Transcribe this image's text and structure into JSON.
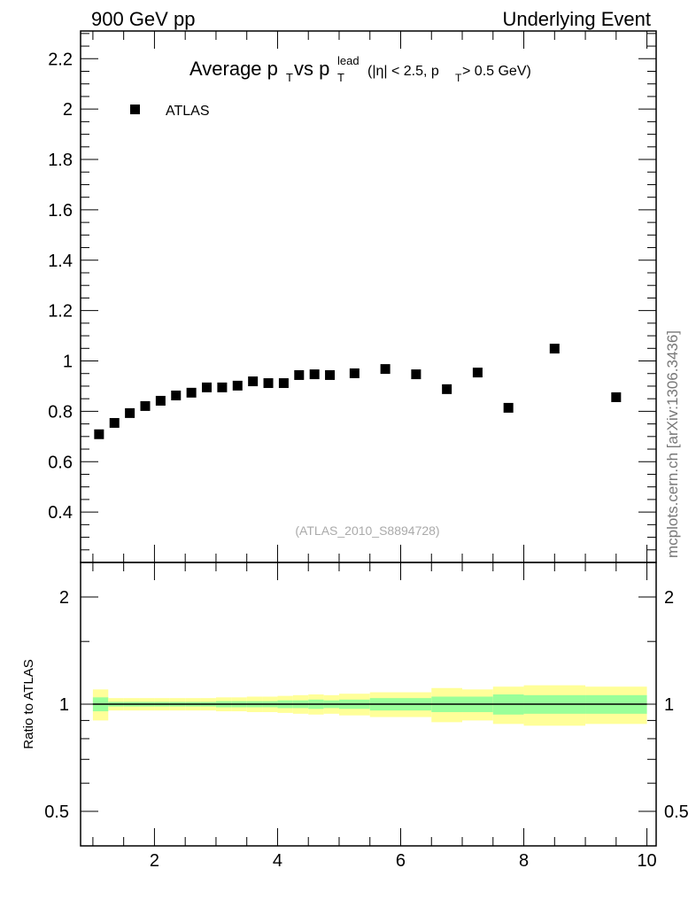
{
  "header": {
    "left": "900 GeV pp",
    "right": "Underlying Event"
  },
  "side_label": "mcplots.cern.ch [arXiv:1306.3436]",
  "analysis_label": "(ATLAS_2010_S8894728)",
  "chart_data": [
    {
      "type": "scatter",
      "title_main": "Average p",
      "title_sub_T": "T",
      "title_vs": " vs p",
      "title_lead": "lead",
      "title_cut": "(|η| < 2.5, p",
      "title_cut2": " > 0.5 GeV)",
      "xlim": [
        0.8,
        10.15
      ],
      "ylim": [
        0.2,
        2.31
      ],
      "yticks": [
        "0.4",
        "0.6",
        "0.8",
        "1",
        "1.2",
        "1.4",
        "1.6",
        "1.8",
        "2",
        "2.2"
      ],
      "legend": [
        {
          "name": "ATLAS",
          "marker": "square",
          "color": "#000000"
        }
      ],
      "legend_position": "top-left",
      "series": [
        {
          "name": "ATLAS",
          "x": [
            1.1,
            1.35,
            1.6,
            1.85,
            2.1,
            2.35,
            2.6,
            2.85,
            3.1,
            3.35,
            3.6,
            3.85,
            4.1,
            4.35,
            4.6,
            4.85,
            5.25,
            5.75,
            6.25,
            6.75,
            7.25,
            7.75,
            8.5,
            9.5
          ],
          "y": [
            0.709,
            0.754,
            0.793,
            0.821,
            0.842,
            0.863,
            0.874,
            0.895,
            0.895,
            0.902,
            0.919,
            0.912,
            0.912,
            0.944,
            0.947,
            0.944,
            0.951,
            0.968,
            0.947,
            0.888,
            0.954,
            0.814,
            1.049,
            0.856
          ]
        }
      ]
    },
    {
      "type": "area",
      "ylabel": "Ratio to ATLAS",
      "yscale": "log",
      "ylim": [
        0.4,
        2.5
      ],
      "yticks": [
        "0.5",
        "1",
        "2"
      ],
      "xticks": [
        "2",
        "4",
        "6",
        "8",
        "10"
      ],
      "bin_edges": [
        1,
        1.25,
        1.5,
        1.75,
        2,
        2.25,
        2.5,
        2.75,
        3,
        3.25,
        3.5,
        3.75,
        4,
        4.25,
        4.5,
        4.75,
        5,
        5.5,
        6,
        6.5,
        7,
        7.5,
        8,
        9,
        10
      ],
      "stat_err": [
        0.045,
        0.015,
        0.015,
        0.015,
        0.015,
        0.015,
        0.015,
        0.015,
        0.02,
        0.02,
        0.02,
        0.02,
        0.025,
        0.025,
        0.03,
        0.025,
        0.03,
        0.04,
        0.04,
        0.05,
        0.05,
        0.065,
        0.06,
        0.06
      ],
      "total_err": [
        0.1,
        0.04,
        0.04,
        0.04,
        0.04,
        0.04,
        0.04,
        0.04,
        0.045,
        0.045,
        0.05,
        0.05,
        0.055,
        0.06,
        0.065,
        0.06,
        0.07,
        0.08,
        0.08,
        0.11,
        0.1,
        0.12,
        0.13,
        0.12
      ],
      "colors": {
        "stat": "#99ff99",
        "total": "#ffff99",
        "line": "#000000"
      }
    }
  ]
}
